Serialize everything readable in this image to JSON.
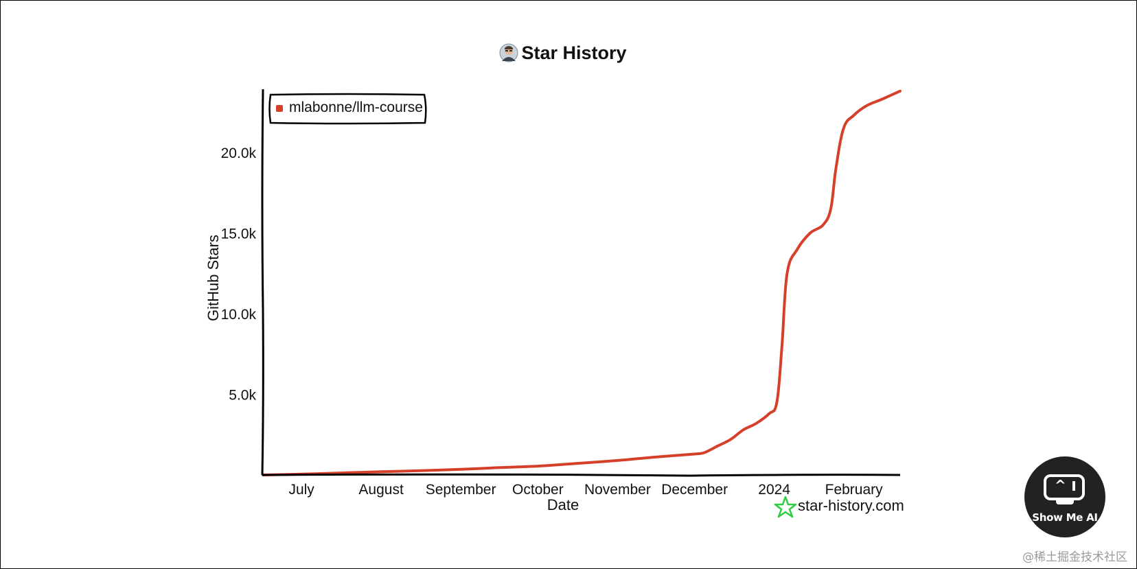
{
  "chart_data": {
    "type": "line",
    "title": "Star History",
    "xlabel": "Date",
    "ylabel": "GitHub Stars",
    "x_tick_labels": [
      "July",
      "August",
      "September",
      "October",
      "November",
      "December",
      "2024",
      "February"
    ],
    "x_tick_dates": [
      "2023-07-01",
      "2023-08-01",
      "2023-09-01",
      "2023-10-01",
      "2023-11-01",
      "2023-12-01",
      "2024-01-01",
      "2024-02-01"
    ],
    "y_ticks": [
      5000,
      10000,
      15000,
      20000
    ],
    "y_tick_labels": [
      "5.0k",
      "10.0k",
      "15.0k",
      "20.0k"
    ],
    "xlim": [
      "2023-06-16",
      "2024-02-19"
    ],
    "ylim": [
      0,
      24000
    ],
    "legend_position": "top-left",
    "grid": false,
    "series": [
      {
        "name": "mlabonne/llm-course",
        "color": "#d6402a",
        "points": [
          {
            "x": "2023-06-16",
            "y": 0
          },
          {
            "x": "2023-07-01",
            "y": 50
          },
          {
            "x": "2023-07-15",
            "y": 120
          },
          {
            "x": "2023-08-01",
            "y": 200
          },
          {
            "x": "2023-08-15",
            "y": 260
          },
          {
            "x": "2023-09-01",
            "y": 350
          },
          {
            "x": "2023-09-15",
            "y": 450
          },
          {
            "x": "2023-10-01",
            "y": 550
          },
          {
            "x": "2023-10-15",
            "y": 700
          },
          {
            "x": "2023-11-01",
            "y": 900
          },
          {
            "x": "2023-11-15",
            "y": 1100
          },
          {
            "x": "2023-12-01",
            "y": 1300
          },
          {
            "x": "2023-12-05",
            "y": 1400
          },
          {
            "x": "2023-12-10",
            "y": 1800
          },
          {
            "x": "2023-12-15",
            "y": 2200
          },
          {
            "x": "2023-12-20",
            "y": 2800
          },
          {
            "x": "2023-12-25",
            "y": 3200
          },
          {
            "x": "2023-12-30",
            "y": 3800
          },
          {
            "x": "2024-01-02",
            "y": 4500
          },
          {
            "x": "2024-01-04",
            "y": 8000
          },
          {
            "x": "2024-01-06",
            "y": 12500
          },
          {
            "x": "2024-01-10",
            "y": 14000
          },
          {
            "x": "2024-01-15",
            "y": 15000
          },
          {
            "x": "2024-01-20",
            "y": 15500
          },
          {
            "x": "2024-01-23",
            "y": 16500
          },
          {
            "x": "2024-01-25",
            "y": 19000
          },
          {
            "x": "2024-01-28",
            "y": 21500
          },
          {
            "x": "2024-02-01",
            "y": 22300
          },
          {
            "x": "2024-02-06",
            "y": 22900
          },
          {
            "x": "2024-02-12",
            "y": 23300
          },
          {
            "x": "2024-02-19",
            "y": 23800
          }
        ]
      }
    ]
  },
  "watermark": {
    "text": "star-history.com",
    "icon": "star-outline-icon",
    "icon_color": "#2ecc40"
  },
  "badge": {
    "text": "Show Me AI",
    "icon": "monitor-icon"
  },
  "source_credit": "@稀土掘金技术社区"
}
